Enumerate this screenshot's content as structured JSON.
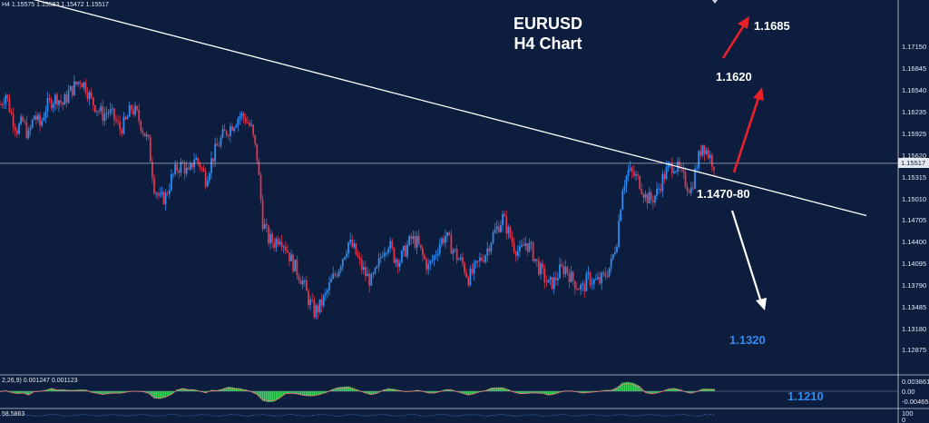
{
  "header": {
    "ohlc_text": "H4  1.15575 1.15583 1.15472 1.15517"
  },
  "title": {
    "line1": "EURUSD",
    "line2": "H4 Chart"
  },
  "annotations": {
    "target_high": "1.1685",
    "target_mid": "1.1620",
    "support": "1.1470-80",
    "target_low": "1.1320",
    "macd_level": "1.1210"
  },
  "indicators": {
    "macd_label": "2,26,9) 0.001247 0.001123",
    "rsi_label": "58.5863",
    "macd_ticks": [
      "0.003861",
      "0.00",
      "-0.004652"
    ],
    "rsi_ticks": [
      "100",
      "0"
    ]
  },
  "colors": {
    "background": "#0c1d3e",
    "bull": "#2f8cf0",
    "bear": "#e0354a",
    "trendline": "#ffffff",
    "up_arrow": "#e8202c",
    "down_arrow": "#ffffff",
    "macd_hist": "#3bd25b",
    "blue_label": "#2f8cf0"
  },
  "chart_data": {
    "type": "candlestick",
    "symbol": "EURUSD",
    "timeframe": "H4",
    "current_price": 1.15517,
    "ylim": [
      1.1256,
      1.1782
    ],
    "y_ticks": [
      "1.17150",
      "1.16845",
      "1.16540",
      "1.16235",
      "1.15925",
      "1.15620",
      "1.15315",
      "1.15010",
      "1.14705",
      "1.14400",
      "1.14095",
      "1.13790",
      "1.13485",
      "1.13180",
      "1.12875"
    ],
    "trendline": [
      {
        "x_index": 0,
        "price": 1.1795
      },
      {
        "x_index": 236,
        "price": 1.1478
      }
    ],
    "levels": {
      "target_high": 1.1685,
      "target_mid": 1.162,
      "support": "1.1470-80",
      "target_low": 1.132,
      "lower_target": 1.121
    },
    "path_closes": [
      1.1635,
      1.165,
      1.162,
      1.16,
      1.161,
      1.159,
      1.162,
      1.1605,
      1.163,
      1.164,
      1.1645,
      1.1635,
      1.165,
      1.166,
      1.167,
      1.166,
      1.164,
      1.163,
      1.162,
      1.1625,
      1.1615,
      1.16,
      1.161,
      1.163,
      1.162,
      1.16,
      1.158,
      1.152,
      1.15,
      1.1505,
      1.153,
      1.1545,
      1.155,
      1.1535,
      1.156,
      1.155,
      1.153,
      1.1555,
      1.1575,
      1.159,
      1.16,
      1.161,
      1.162,
      1.1615,
      1.16,
      1.156,
      1.147,
      1.1445,
      1.144,
      1.145,
      1.1435,
      1.1415,
      1.14,
      1.1385,
      1.136,
      1.1342,
      1.135,
      1.1365,
      1.1385,
      1.14,
      1.142,
      1.144,
      1.143,
      1.141,
      1.1395,
      1.1385,
      1.14,
      1.143,
      1.144,
      1.142,
      1.1415,
      1.143,
      1.1445,
      1.144,
      1.142,
      1.1405,
      1.142,
      1.144,
      1.145,
      1.1435,
      1.142,
      1.141,
      1.139,
      1.14,
      1.1415,
      1.1425,
      1.1445,
      1.146,
      1.1475,
      1.1455,
      1.1435,
      1.1425,
      1.144,
      1.143,
      1.141,
      1.1395,
      1.138,
      1.1385,
      1.14,
      1.1405,
      1.139,
      1.138,
      1.1375,
      1.139,
      1.1385,
      1.1385,
      1.1395,
      1.141,
      1.1445,
      1.152,
      1.154,
      1.1535,
      1.1525,
      1.1505,
      1.15,
      1.151,
      1.153,
      1.1545,
      1.155,
      1.154,
      1.1525,
      1.1515,
      1.155,
      1.158,
      1.1565,
      1.1551
    ]
  }
}
